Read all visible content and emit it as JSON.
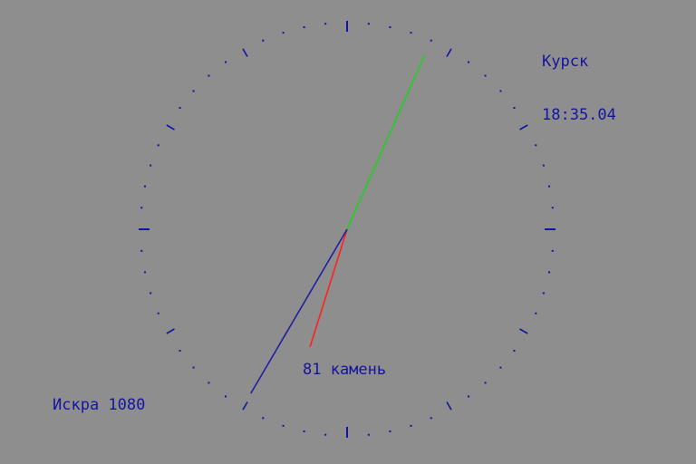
{
  "clock": {
    "city": "Курск",
    "time": "18:35.04",
    "jewels_label": "81 камень",
    "brand_label": "Искра 1080",
    "hands": {
      "hour": 18,
      "minute": 35,
      "second": 4
    },
    "colors": {
      "background": "#8e8e8e",
      "ticks": "#1414a0",
      "hour_hand": "#ff2020",
      "minute_hand": "#2020a0",
      "second_hand": "#20d020",
      "text": "#1414a0"
    }
  }
}
